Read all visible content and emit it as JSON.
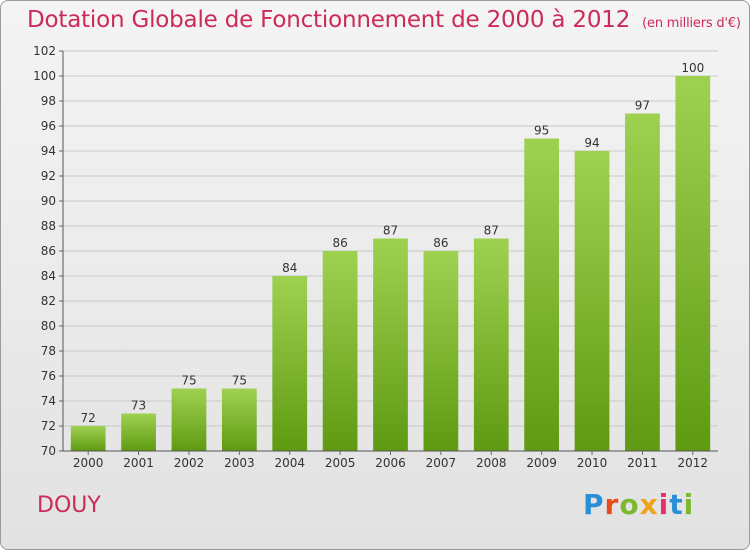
{
  "title": "Dotation Globale de Fonctionnement de 2000 à 2012",
  "unit": "(en milliers d'€)",
  "place": "DOUY",
  "logo": {
    "text": "Proxiti",
    "letter_colors": [
      "#2a8fd4",
      "#e84b1e",
      "#7cb92d",
      "#f0a21a",
      "#e3316b",
      "#2a8fd4",
      "#7cb92d"
    ]
  },
  "colors": {
    "bar_light": "#9fd151",
    "bar_dark": "#5f9a12",
    "grid": "#c8c8c8",
    "title": "#cc2a59"
  },
  "chart_data": {
    "type": "bar",
    "title": "Dotation Globale de Fonctionnement de 2000 à 2012",
    "subtitle": "(en milliers d'€)",
    "xlabel": "",
    "ylabel": "",
    "categories": [
      "2000",
      "2001",
      "2002",
      "2003",
      "2004",
      "2005",
      "2006",
      "2007",
      "2008",
      "2009",
      "2010",
      "2011",
      "2012"
    ],
    "values": [
      72,
      73,
      75,
      75,
      84,
      86,
      87,
      86,
      87,
      95,
      94,
      97,
      100
    ],
    "ylim": [
      70,
      102
    ],
    "yticks": [
      70,
      72,
      74,
      76,
      78,
      80,
      82,
      84,
      86,
      88,
      90,
      92,
      94,
      96,
      98,
      100,
      102
    ],
    "grid": true,
    "data_labels": true
  }
}
